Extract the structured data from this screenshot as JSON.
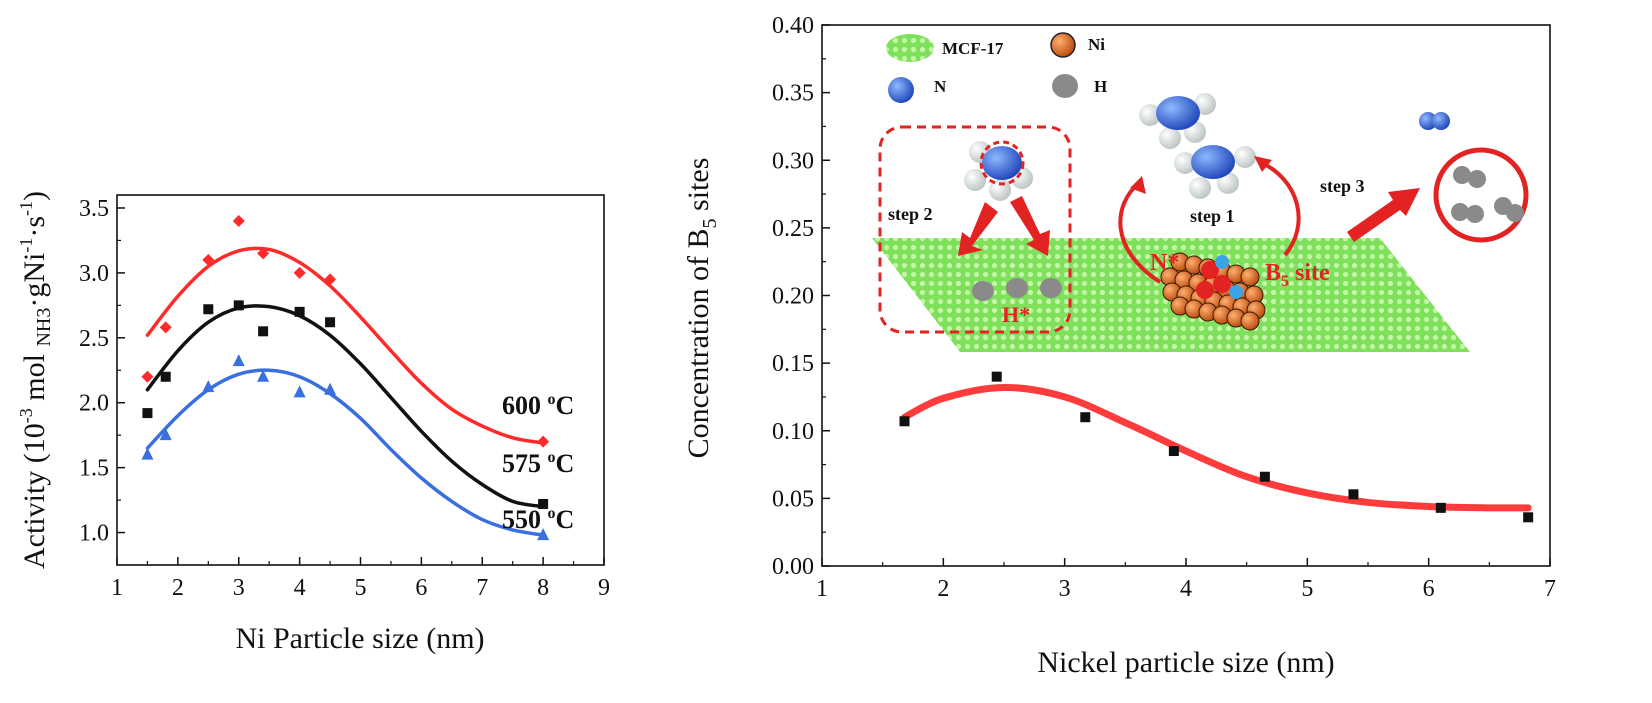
{
  "chart_data": [
    {
      "type": "scatter",
      "xlabel": "Ni Particle size (nm)",
      "ylabel_main": "Activity (10",
      "ylabel_exp1": "-3",
      "ylabel_mid": " mol ",
      "ylabel_sub": "NH3",
      "ylabel_mid2": "·gNi",
      "ylabel_exp2": "-1",
      "ylabel_mid3": "·s",
      "ylabel_exp3": "-1",
      "ylabel_end": ")",
      "xlim": [
        1,
        9
      ],
      "ylim": [
        0.75,
        3.6
      ],
      "xticks": [
        "1",
        "2",
        "3",
        "4",
        "5",
        "6",
        "7",
        "8",
        "9"
      ],
      "yticks": [
        "1.0",
        "1.5",
        "2.0",
        "2.5",
        "3.0",
        "3.5"
      ],
      "series": [
        {
          "name": "600 oC",
          "label_main": "600 ",
          "label_sup": "o",
          "label_end": "C",
          "color": "#ff2a2a",
          "marker": "diamond",
          "x": [
            1.5,
            1.8,
            2.5,
            3.0,
            3.4,
            4.0,
            4.5,
            8.0
          ],
          "y": [
            2.2,
            2.58,
            3.1,
            3.4,
            3.15,
            3.0,
            2.95,
            1.7
          ],
          "fit_x": [
            1.5,
            2,
            2.5,
            3,
            3.5,
            4,
            4.5,
            5,
            5.5,
            6,
            6.5,
            7,
            7.5,
            8
          ],
          "fit_y": [
            2.52,
            2.82,
            3.05,
            3.17,
            3.18,
            3.08,
            2.9,
            2.66,
            2.4,
            2.15,
            1.95,
            1.82,
            1.73,
            1.69
          ]
        },
        {
          "name": "575 oC",
          "label_main": "575 ",
          "label_sup": "o",
          "label_end": "C",
          "color": "#111111",
          "marker": "square",
          "x": [
            1.5,
            1.8,
            2.5,
            3.0,
            3.4,
            4.0,
            4.5,
            8.0
          ],
          "y": [
            1.92,
            2.2,
            2.72,
            2.75,
            2.55,
            2.7,
            2.62,
            1.22
          ],
          "fit_x": [
            1.5,
            2,
            2.5,
            3,
            3.5,
            4,
            4.5,
            5,
            5.5,
            6,
            6.5,
            7,
            7.5,
            8
          ],
          "fit_y": [
            2.1,
            2.4,
            2.62,
            2.73,
            2.74,
            2.67,
            2.52,
            2.3,
            2.04,
            1.78,
            1.55,
            1.37,
            1.24,
            1.2
          ]
        },
        {
          "name": "550 oC",
          "label_main": "550 ",
          "label_sup": "o",
          "label_end": "C",
          "color": "#3a6fe0",
          "marker": "triangle",
          "x": [
            1.5,
            1.8,
            2.5,
            3.0,
            3.4,
            4.0,
            4.5,
            8.0
          ],
          "y": [
            1.6,
            1.75,
            2.12,
            2.32,
            2.2,
            2.08,
            2.1,
            0.98
          ],
          "fit_x": [
            1.5,
            2,
            2.5,
            3,
            3.5,
            4,
            4.5,
            5,
            5.5,
            6,
            6.5,
            7,
            7.5,
            8
          ],
          "fit_y": [
            1.65,
            1.9,
            2.1,
            2.22,
            2.25,
            2.2,
            2.07,
            1.88,
            1.64,
            1.42,
            1.24,
            1.1,
            1.02,
            0.98
          ]
        }
      ]
    },
    {
      "type": "scatter",
      "xlabel": "Nickel particle size (nm)",
      "ylabel_main": "Concentration of B",
      "ylabel_sub": "5",
      "ylabel_end": " sites",
      "xlim": [
        1,
        7
      ],
      "ylim": [
        0,
        0.4
      ],
      "xticks": [
        "1",
        "2",
        "3",
        "4",
        "5",
        "6",
        "7"
      ],
      "yticks": [
        "0.00",
        "0.05",
        "0.10",
        "0.15",
        "0.20",
        "0.25",
        "0.30",
        "0.35",
        "0.40"
      ],
      "series": [
        {
          "color": "#111111",
          "marker": "square",
          "x": [
            1.68,
            2.44,
            3.17,
            3.9,
            4.65,
            5.38,
            6.1,
            6.82
          ],
          "y": [
            0.107,
            0.14,
            0.11,
            0.085,
            0.066,
            0.053,
            0.043,
            0.036
          ],
          "fit_color": "#ff3b3b",
          "fit_x": [
            1.68,
            2.0,
            2.5,
            3.0,
            3.5,
            4.0,
            4.5,
            5.0,
            5.5,
            6.0,
            6.5,
            6.82
          ],
          "fit_y": [
            0.11,
            0.124,
            0.132,
            0.125,
            0.106,
            0.085,
            0.066,
            0.054,
            0.047,
            0.044,
            0.043,
            0.043
          ]
        }
      ]
    }
  ],
  "inset": {
    "legend_mcf": "MCF-17",
    "legend_ni": "Ni",
    "legend_n": "N",
    "legend_h": "H",
    "step1": "step 1",
    "step2": "step 2",
    "step3": "step 3",
    "h_star": "H*",
    "n_star": "N*",
    "b5_main": "B",
    "b5_sub": "5",
    "b5_end": " site",
    "colors": {
      "support": "#8fe870",
      "ni": "#e8761e",
      "n": "#3b6fd6",
      "h": "#8a8a8a",
      "accent": "#e32222"
    }
  }
}
